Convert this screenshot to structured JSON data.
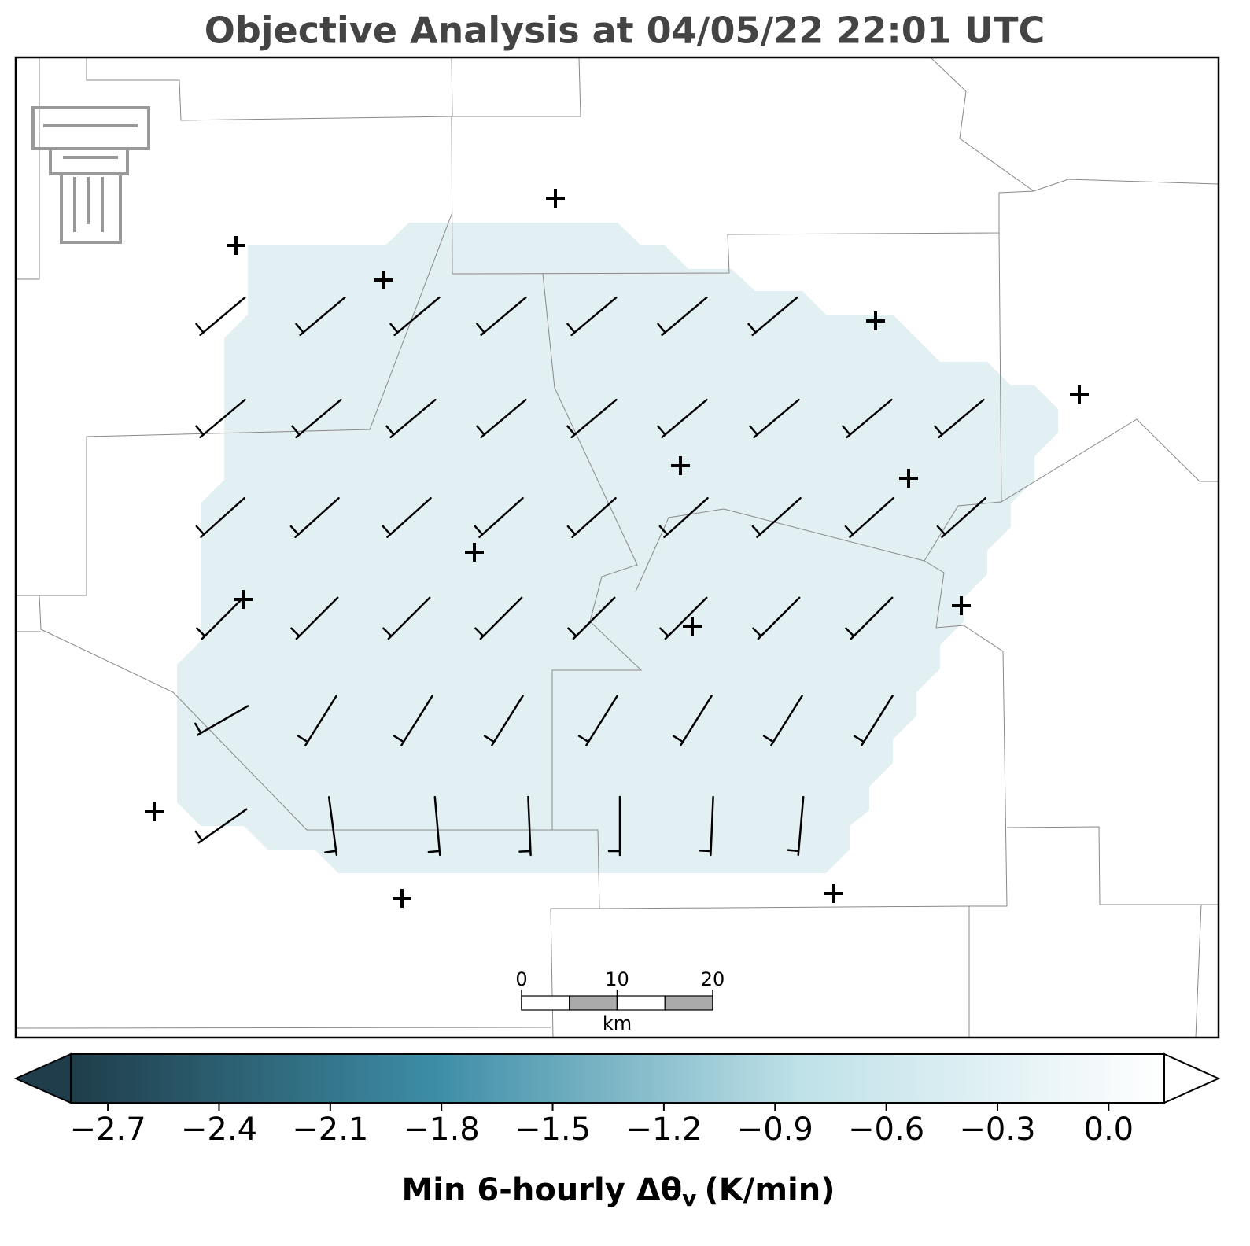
{
  "title": "Objective Analysis at 04/05/22 22:01 UTC",
  "scale_bar": {
    "ticks": [
      0,
      10,
      20
    ],
    "lim": [
      0,
      20
    ],
    "unit": "km"
  },
  "colorbar": {
    "lim": [
      -2.8,
      0.15
    ],
    "colors": [
      "#1f3d4a",
      "#3d8da6",
      "#bfe1e8",
      "#ffffff"
    ],
    "ticks": [
      {
        "value": -2.7,
        "label": "−2.7"
      },
      {
        "value": -2.4,
        "label": "−2.4"
      },
      {
        "value": -2.1,
        "label": "−2.1"
      },
      {
        "value": -1.8,
        "label": "−1.8"
      },
      {
        "value": -1.5,
        "label": "−1.5"
      },
      {
        "value": -1.2,
        "label": "−1.2"
      },
      {
        "value": -0.9,
        "label": "−0.9"
      },
      {
        "value": -0.6,
        "label": "−0.6"
      },
      {
        "value": -0.3,
        "label": "−0.3"
      },
      {
        "value": 0,
        "label": "0.0"
      }
    ],
    "label_main": "Min 6-hourly Δθ",
    "label_sub": "v",
    "label_unit": "(K/min)"
  }
}
